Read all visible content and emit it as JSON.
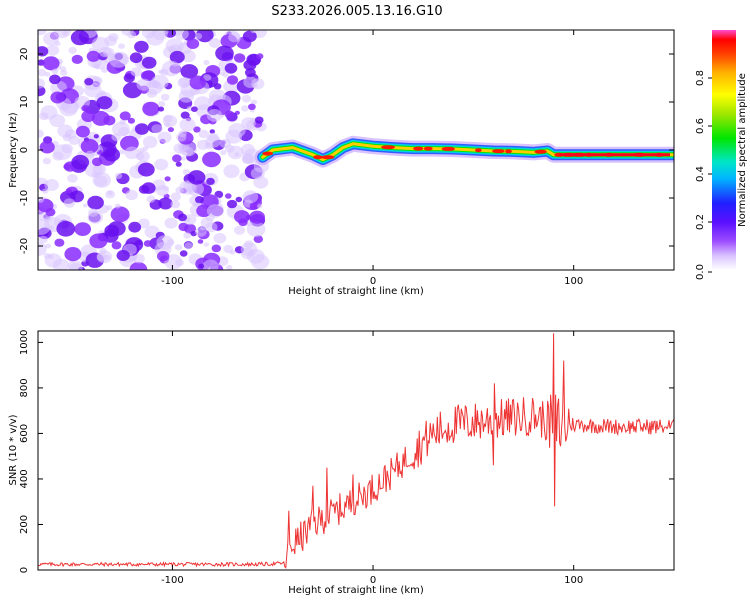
{
  "figure": {
    "title": "S233.2026.005.13.16.G10"
  },
  "chart_data": [
    {
      "type": "heatmap",
      "xlabel": "Height of straight line (km)",
      "ylabel": "Frequency (Hz)",
      "xlim": [
        -167,
        150
      ],
      "ylim": [
        -25,
        25
      ],
      "xticks": [
        "-100",
        "0",
        "100"
      ],
      "yticks": [
        "20",
        "10",
        "0",
        "-10",
        "-20"
      ],
      "noise_region_x": [
        -167,
        -55
      ],
      "ridge": {
        "x": [
          -55,
          -50,
          -40,
          -30,
          -25,
          -20,
          -15,
          -10,
          0,
          10,
          20,
          30,
          40,
          50,
          60,
          70,
          80,
          87,
          90,
          100,
          110,
          120,
          130,
          140,
          150
        ],
        "freq": [
          -1.5,
          0,
          0.5,
          -1,
          -2,
          -1,
          0.5,
          1.3,
          0.8,
          0.5,
          0.3,
          0.3,
          0.2,
          0,
          -0.2,
          -0.3,
          -0.5,
          -0.2,
          -1,
          -1,
          -1,
          -1,
          -1,
          -1,
          -1
        ]
      },
      "colorbar": {
        "label": "Normalized spectral amplitude",
        "range": [
          0,
          1
        ],
        "ticks": [
          "0.0",
          "0.2",
          "0.4",
          "0.6",
          "0.8"
        ],
        "colors": [
          "#ffffff",
          "#c9a6ff",
          "#7a19ff",
          "#2020ff",
          "#00b4ff",
          "#00e6c8",
          "#00e600",
          "#a0e600",
          "#ffff00",
          "#ffb400",
          "#ff6a00",
          "#ff0000",
          "#ff4dd2"
        ]
      }
    },
    {
      "type": "line",
      "xlabel": "Height of straight line (km)",
      "ylabel": "SNR (10 * v/v)",
      "xlim": [
        -167,
        150
      ],
      "ylim": [
        0,
        1050
      ],
      "xticks": [
        "-100",
        "0",
        "100"
      ],
      "yticks": [
        "0",
        "200",
        "400",
        "600",
        "800",
        "1000"
      ],
      "line_color": "#ee3333",
      "trend": {
        "x": [
          -167,
          -55,
          -44,
          -42,
          -35,
          -30,
          -20,
          -10,
          0,
          10,
          20,
          30,
          40,
          60,
          80,
          88,
          92,
          100,
          120,
          150
        ],
        "y": [
          25,
          25,
          30,
          100,
          150,
          200,
          250,
          300,
          360,
          430,
          520,
          600,
          640,
          660,
          680,
          650,
          640,
          640,
          630,
          630
        ]
      },
      "spikes": [
        {
          "x": -42,
          "y": 260
        },
        {
          "x": -30,
          "y": 370
        },
        {
          "x": -23,
          "y": 450
        },
        {
          "x": -10,
          "y": 420
        },
        {
          "x": 60,
          "y": 460
        },
        {
          "x": 60.5,
          "y": 820
        },
        {
          "x": 90,
          "y": 1040
        },
        {
          "x": 90.6,
          "y": 280
        },
        {
          "x": 93,
          "y": 560
        },
        {
          "x": 95,
          "y": 920
        }
      ]
    }
  ]
}
